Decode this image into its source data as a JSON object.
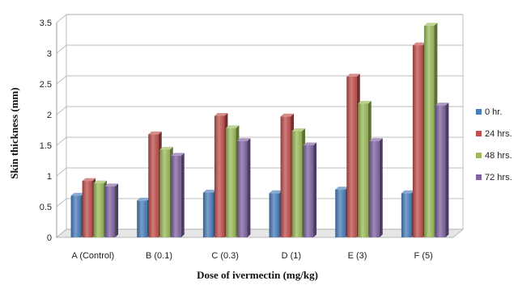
{
  "chart_data": {
    "type": "bar",
    "title": "",
    "xlabel": "Dose of ivermectin (mg/kg)",
    "ylabel": "Skin thickness (mm)",
    "ylim": [
      0,
      3.5
    ],
    "yticks": [
      "0",
      "0.5",
      "1",
      "1.5",
      "2",
      "2.5",
      "3",
      "3.5"
    ],
    "categories": [
      "A (Control)",
      "B (0.1)",
      "C  (0.3)",
      "D  (1)",
      "E  (3)",
      "F  (5)"
    ],
    "grid": "horizontal",
    "legend_position": "right",
    "series": [
      {
        "name": "0 hr.",
        "color": "#4a7ebb",
        "values": [
          0.68,
          0.6,
          0.73,
          0.72,
          0.78,
          0.72
        ]
      },
      {
        "name": "24 hrs.",
        "color": "#c0504d",
        "values": [
          0.92,
          1.68,
          1.98,
          1.97,
          2.62,
          3.13
        ]
      },
      {
        "name": "48 hrs.",
        "color": "#9bbb59",
        "values": [
          0.88,
          1.43,
          1.78,
          1.73,
          2.18,
          3.45
        ]
      },
      {
        "name": "72 hrs.",
        "color": "#8064a2",
        "values": [
          0.83,
          1.33,
          1.57,
          1.5,
          1.57,
          2.15
        ]
      }
    ]
  }
}
